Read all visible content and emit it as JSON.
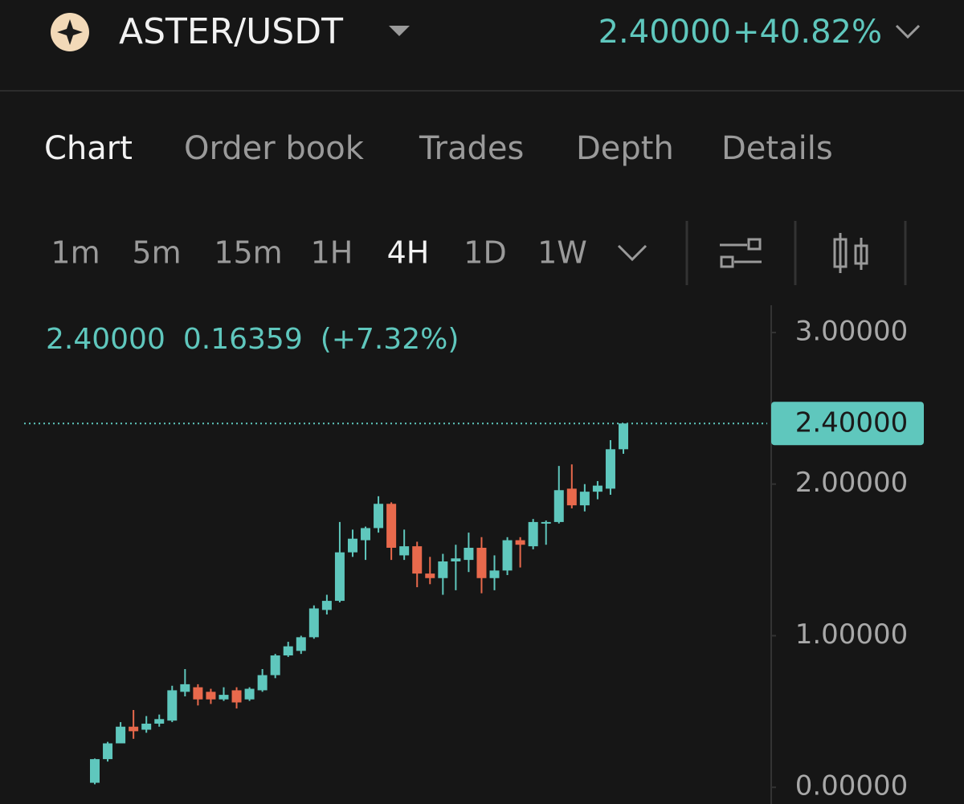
{
  "header": {
    "pair": "ASTER/USDT",
    "price": "2.40000",
    "change": "+40.82%"
  },
  "tabs": [
    "Chart",
    "Order book",
    "Trades",
    "Depth",
    "Details"
  ],
  "intervals": [
    "1m",
    "5m",
    "15m",
    "1H",
    "4H",
    "1D",
    "1W"
  ],
  "info": [
    "2.40000",
    "0.16359",
    "(+7.32%)"
  ],
  "chart_data": {
    "type": "candlestick",
    "open": [
      0.03,
      0.186,
      0.29,
      0.4,
      0.38,
      0.42,
      0.44,
      0.63,
      0.66,
      0.63,
      0.58,
      0.64,
      0.58,
      0.64,
      0.74,
      0.87,
      0.9,
      0.99,
      1.17,
      1.23,
      1.55,
      1.63,
      1.71,
      1.87,
      1.53,
      1.59,
      1.41,
      1.38,
      1.49,
      1.5,
      1.58,
      1.38,
      1.43,
      1.63,
      1.59,
      1.74,
      1.75,
      1.97,
      1.86,
      1.95,
      1.97,
      2.23
    ],
    "high": [
      0.19,
      0.3,
      0.43,
      0.51,
      0.47,
      0.48,
      0.67,
      0.78,
      0.68,
      0.65,
      0.66,
      0.66,
      0.66,
      0.78,
      0.88,
      0.96,
      1.0,
      1.2,
      1.27,
      1.75,
      1.7,
      1.72,
      1.92,
      1.88,
      1.7,
      1.62,
      1.52,
      1.54,
      1.6,
      1.68,
      1.65,
      1.53,
      1.65,
      1.65,
      1.77,
      1.76,
      2.12,
      2.13,
      2.0,
      2.02,
      2.29,
      2.4
    ],
    "low": [
      0.02,
      0.17,
      0.29,
      0.32,
      0.36,
      0.4,
      0.43,
      0.6,
      0.54,
      0.55,
      0.57,
      0.52,
      0.57,
      0.63,
      0.72,
      0.86,
      0.88,
      0.98,
      1.14,
      1.22,
      1.52,
      1.5,
      1.68,
      1.5,
      1.5,
      1.32,
      1.34,
      1.27,
      1.3,
      1.42,
      1.28,
      1.3,
      1.4,
      1.45,
      1.57,
      1.6,
      1.74,
      1.84,
      1.82,
      1.9,
      1.93,
      2.2
    ],
    "close": [
      0.186,
      0.29,
      0.4,
      0.37,
      0.42,
      0.45,
      0.64,
      0.68,
      0.58,
      0.58,
      0.61,
      0.56,
      0.65,
      0.74,
      0.87,
      0.93,
      0.99,
      1.18,
      1.23,
      1.55,
      1.64,
      1.71,
      1.87,
      1.58,
      1.59,
      1.41,
      1.38,
      1.49,
      1.51,
      1.58,
      1.38,
      1.43,
      1.63,
      1.6,
      1.75,
      1.75,
      1.96,
      1.86,
      1.95,
      1.99,
      2.23,
      2.4
    ],
    "up_color": "#5fc7bd",
    "down_color": "#e8694c",
    "ylim": [
      -0.11,
      3.18
    ],
    "yticks": [
      {
        "value": 0,
        "label": "0.00000"
      },
      {
        "value": 1,
        "label": "1.00000"
      },
      {
        "value": 2,
        "label": "2.00000"
      },
      {
        "value": 3,
        "label": "3.00000"
      }
    ],
    "last_price": {
      "value": 2.4,
      "label": "2.40000"
    }
  }
}
